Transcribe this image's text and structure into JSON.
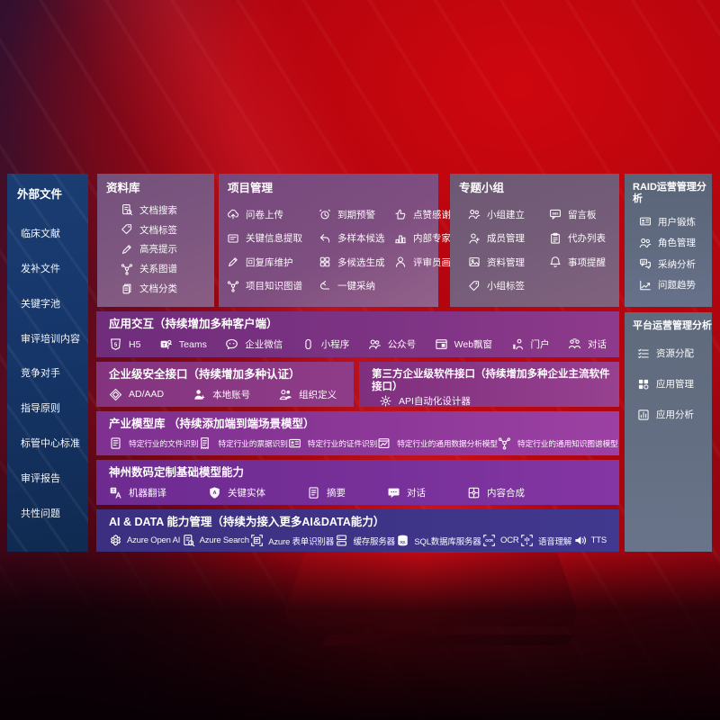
{
  "colors": {
    "background_red": "#b7060f",
    "sidebar_blue": "#16366a",
    "panel_mauve": "#7b537f",
    "panel_slate": "#606b7f",
    "band_purple": "#7c3190",
    "band_indigo": "#3d3184",
    "text": "#ffffff"
  },
  "left_sidebar": {
    "title": "外部文件",
    "items": [
      "临床文献",
      "发补文件",
      "关键字池",
      "审评培训内容",
      "竞争对手",
      "指导原则",
      "标管中心标准",
      "审评报告",
      "共性问题"
    ]
  },
  "repository_panel": {
    "title": "资料库",
    "items": [
      {
        "icon": "doc-search",
        "label": "文档搜索"
      },
      {
        "icon": "tag",
        "label": "文档标签"
      },
      {
        "icon": "pen",
        "label": "高亮提示"
      },
      {
        "icon": "graph",
        "label": "关系图谱"
      },
      {
        "icon": "docs",
        "label": "文档分类"
      }
    ]
  },
  "project_panel": {
    "title": "项目管理",
    "items": [
      {
        "icon": "cloud-upload",
        "label": "问卷上传"
      },
      {
        "icon": "alarm",
        "label": "到期预警"
      },
      {
        "icon": "thumb-up",
        "label": "点赞感谢"
      },
      {
        "icon": "card-extract",
        "label": "关键信息提取"
      },
      {
        "icon": "reply-arrow",
        "label": "多样本候选"
      },
      {
        "icon": "ranking",
        "label": "内部专家排名"
      },
      {
        "icon": "pen",
        "label": "回复库维护"
      },
      {
        "icon": "grid",
        "label": "多候选生成"
      },
      {
        "icon": "person",
        "label": "评审员画像"
      },
      {
        "icon": "graph",
        "label": "项目知识图谱"
      },
      {
        "icon": "adopt-arrow",
        "label": "一键采纳"
      }
    ]
  },
  "group_panel": {
    "title": "专题小组",
    "items": [
      {
        "icon": "people",
        "label": "小组建立"
      },
      {
        "icon": "bbs-board",
        "label": "留言板"
      },
      {
        "icon": "member",
        "label": "成员管理"
      },
      {
        "icon": "todo-list",
        "label": "代办列表"
      },
      {
        "icon": "album",
        "label": "资料管理"
      },
      {
        "icon": "bell",
        "label": "事项提醒"
      },
      {
        "icon": "tag",
        "label": "小组标签"
      }
    ]
  },
  "raid_panel": {
    "title": "RAID运营管理分析",
    "items": [
      {
        "icon": "id-card",
        "label": "用户锻炼"
      },
      {
        "icon": "people",
        "label": "角色管理"
      },
      {
        "icon": "qa-chat",
        "label": "采纳分析"
      },
      {
        "icon": "trend-chart",
        "label": "问题趋势"
      }
    ]
  },
  "platform_panel": {
    "title": "平台运营管理分析",
    "items": [
      {
        "icon": "check-list",
        "label": "资源分配"
      },
      {
        "icon": "app-grid",
        "label": "应用管理"
      },
      {
        "icon": "app-chart",
        "label": "应用分析"
      }
    ]
  },
  "bands": {
    "interaction": {
      "title": "应用交互（持续增加多种客户端）",
      "items": [
        {
          "icon": "h5",
          "label": "H5"
        },
        {
          "icon": "teams",
          "label": "Teams"
        },
        {
          "icon": "wechat-work",
          "label": "企业微信"
        },
        {
          "icon": "mini-program",
          "label": "小程序"
        },
        {
          "icon": "official-account",
          "label": "公众号"
        },
        {
          "icon": "web-window",
          "label": "Web飘窗"
        },
        {
          "icon": "portal",
          "label": "门户"
        },
        {
          "icon": "dialog-people",
          "label": "对话"
        }
      ]
    },
    "security": {
      "title": "企业级安全接口（持续增加多种认证）",
      "items": [
        {
          "icon": "diamond",
          "label": "AD/AAD"
        },
        {
          "icon": "local-account",
          "label": "本地账号"
        },
        {
          "icon": "org-people",
          "label": "组织定义"
        }
      ]
    },
    "third_party": {
      "title": "第三方企业级软件接口（持续增加多种企业主流软件接口）",
      "items": [
        {
          "icon": "api-gear",
          "label": "API自动化设计器"
        }
      ]
    },
    "industry_models": {
      "title": "产业模型库 （持续添加端到端场景模型）",
      "items": [
        {
          "icon": "doc-recognize",
          "label": "特定行业的文件识别"
        },
        {
          "icon": "receipt",
          "label": "特定行业的票据识别"
        },
        {
          "icon": "id-card",
          "label": "特定行业的证件识别"
        },
        {
          "icon": "data-model",
          "label": "特定行业的通用数据分析模型"
        },
        {
          "icon": "knowledge-graph",
          "label": "特定行业的通用知识图谱模型"
        }
      ]
    },
    "base_models": {
      "title": "神州数码定制基础模型能力",
      "items": [
        {
          "icon": "translate",
          "label": "机器翻译"
        },
        {
          "icon": "entity-shield",
          "label": "关键实体"
        },
        {
          "icon": "summary-doc",
          "label": "摘要"
        },
        {
          "icon": "chat",
          "label": "对话"
        },
        {
          "icon": "compose",
          "label": "内容合成"
        }
      ]
    },
    "ai_data": {
      "title": "AI & DATA 能力管理（持续为接入更多AI&DATA能力）",
      "items": [
        {
          "icon": "openai",
          "label": "Azure Open AI"
        },
        {
          "icon": "doc-search",
          "label": "Azure Search"
        },
        {
          "icon": "form-recognizer",
          "label": "Azure 表单识别器"
        },
        {
          "icon": "cache-server",
          "label": "缓存服务器"
        },
        {
          "icon": "sql-database",
          "label": "SQL数据库服务器"
        },
        {
          "icon": "ocr",
          "label": "OCR"
        },
        {
          "icon": "speech",
          "label": "语音理解"
        },
        {
          "icon": "tts",
          "label": "TTS"
        }
      ]
    }
  }
}
